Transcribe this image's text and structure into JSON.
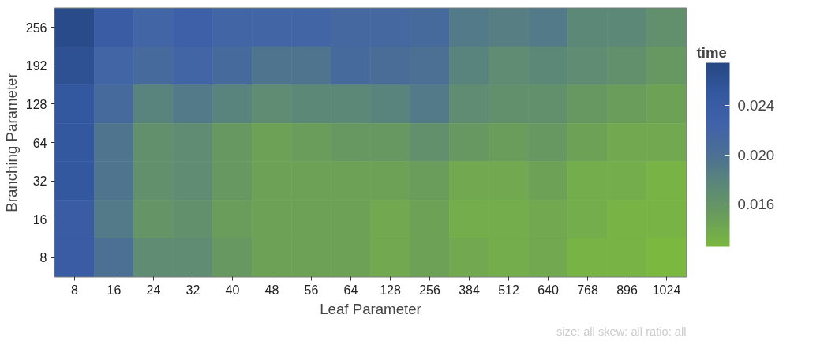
{
  "chart_data": {
    "type": "heatmap",
    "xlabel": "Leaf Parameter",
    "ylabel": "Branching Parameter",
    "legend_title": "time",
    "annotations": [
      "size: all skew: all ratio: all"
    ],
    "categories": [
      "8",
      "16",
      "24",
      "32",
      "40",
      "48",
      "56",
      "64",
      "128",
      "256",
      "384",
      "512",
      "640",
      "768",
      "896",
      "1024"
    ],
    "y_categories": [
      "256",
      "192",
      "128",
      "64",
      "32",
      "16",
      "8"
    ],
    "cells": [
      [
        0.027,
        0.024,
        0.022,
        0.023,
        0.022,
        0.022,
        0.022,
        0.0215,
        0.0215,
        0.021,
        0.019,
        0.0185,
        0.019,
        0.0175,
        0.0175,
        0.0165
      ],
      [
        0.026,
        0.022,
        0.021,
        0.022,
        0.021,
        0.0195,
        0.0195,
        0.021,
        0.0205,
        0.02,
        0.018,
        0.017,
        0.0175,
        0.017,
        0.0165,
        0.0155
      ],
      [
        0.025,
        0.021,
        0.018,
        0.019,
        0.018,
        0.017,
        0.0175,
        0.0175,
        0.018,
        0.019,
        0.017,
        0.0165,
        0.0165,
        0.0155,
        0.015,
        0.0145
      ],
      [
        0.025,
        0.0195,
        0.0165,
        0.017,
        0.0155,
        0.0145,
        0.015,
        0.0155,
        0.0155,
        0.0165,
        0.0155,
        0.015,
        0.0155,
        0.0145,
        0.014,
        0.014
      ],
      [
        0.025,
        0.0195,
        0.0165,
        0.017,
        0.0155,
        0.0145,
        0.0145,
        0.0145,
        0.0145,
        0.015,
        0.014,
        0.014,
        0.0145,
        0.0135,
        0.0135,
        0.013
      ],
      [
        0.024,
        0.019,
        0.016,
        0.0165,
        0.015,
        0.0145,
        0.0145,
        0.0145,
        0.014,
        0.0145,
        0.0135,
        0.0135,
        0.014,
        0.0135,
        0.013,
        0.013
      ],
      [
        0.024,
        0.02,
        0.017,
        0.017,
        0.0155,
        0.0145,
        0.0145,
        0.0145,
        0.014,
        0.0145,
        0.014,
        0.0135,
        0.014,
        0.013,
        0.013,
        0.0125
      ]
    ],
    "clim": [
      0.0125,
      0.0275
    ],
    "cticks": [
      {
        "value": 0.016,
        "label": "0.016"
      },
      {
        "value": 0.02,
        "label": "0.020"
      },
      {
        "value": 0.024,
        "label": "0.024"
      }
    ],
    "colors": [
      "#7ab840",
      "#6a9c5c",
      "#5c8878",
      "#4c7094",
      "#4062aa",
      "#3458a0",
      "#264884"
    ]
  }
}
